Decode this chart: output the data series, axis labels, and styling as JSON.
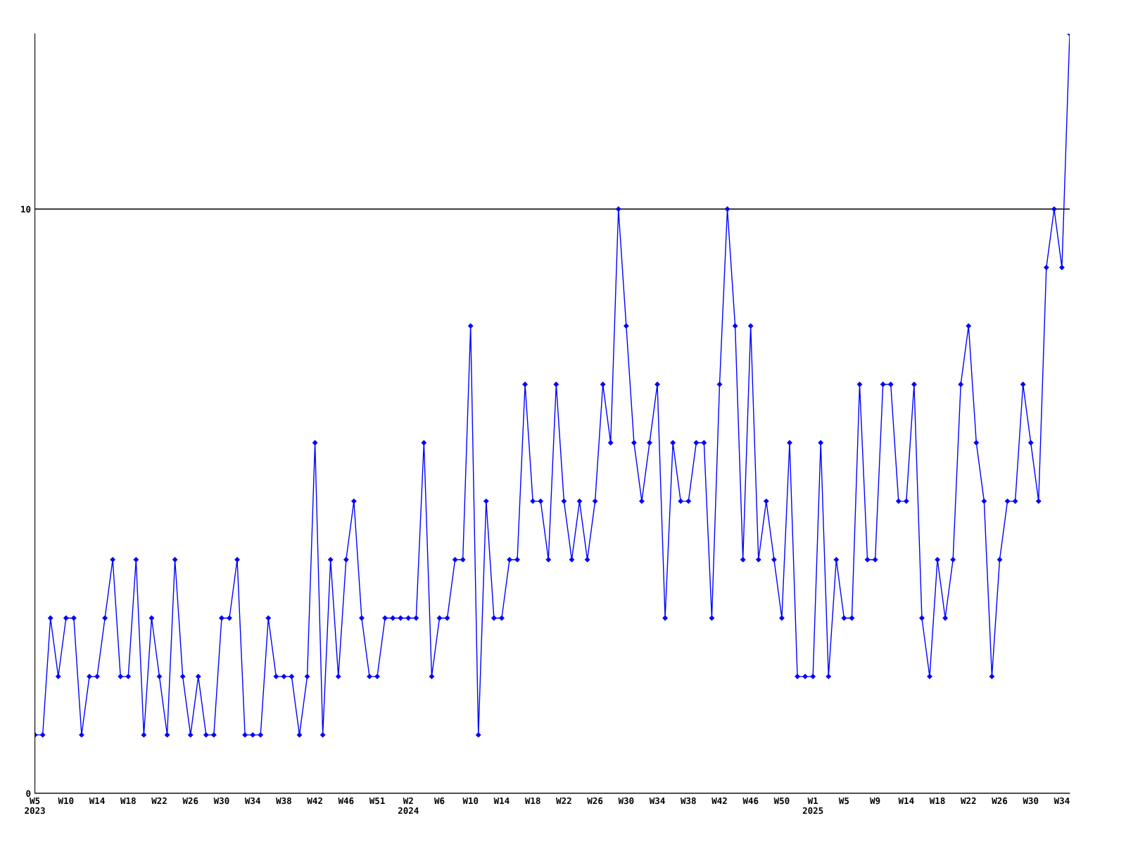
{
  "chart_data": {
    "type": "line",
    "categories": [
      "W5\n2023",
      null,
      null,
      null,
      "W10",
      null,
      null,
      null,
      "W14",
      null,
      null,
      null,
      "W18",
      null,
      null,
      null,
      "W22",
      null,
      null,
      null,
      "W26",
      null,
      null,
      null,
      "W30",
      null,
      null,
      null,
      "W34",
      null,
      null,
      null,
      "W38",
      null,
      null,
      null,
      "W42",
      null,
      null,
      null,
      "W46",
      null,
      null,
      null,
      "W51",
      null,
      null,
      null,
      "W2\n2024",
      null,
      null,
      null,
      "W6",
      null,
      null,
      null,
      "W10",
      null,
      null,
      null,
      "W14",
      null,
      null,
      null,
      "W18",
      null,
      null,
      null,
      "W22",
      null,
      null,
      null,
      "W26",
      null,
      null,
      null,
      "W30",
      null,
      null,
      null,
      "W34",
      null,
      null,
      null,
      "W38",
      null,
      null,
      null,
      "W42",
      null,
      null,
      null,
      "W46",
      null,
      null,
      null,
      "W50",
      null,
      null,
      null,
      "W1\n2025",
      null,
      null,
      null,
      "W5",
      null,
      null,
      null,
      "W9",
      null,
      null,
      null,
      "W14",
      null,
      null,
      null,
      "W18",
      null,
      null,
      null,
      "W22",
      null,
      null,
      null,
      "W26",
      null,
      null,
      null,
      "W30",
      null,
      null,
      null,
      "W34",
      null
    ],
    "series": [
      {
        "color": "#0000ff",
        "values": [
          1,
          1,
          3,
          2,
          3,
          3,
          1,
          2,
          2,
          3,
          4,
          2,
          2,
          4,
          1,
          3,
          2,
          1,
          4,
          2,
          1,
          2,
          1,
          1,
          3,
          3,
          4,
          1,
          1,
          1,
          3,
          2,
          2,
          2,
          1,
          2,
          6,
          1,
          4,
          2,
          4,
          5,
          3,
          2,
          2,
          3,
          3,
          3,
          3,
          3,
          6,
          2,
          3,
          3,
          4,
          4,
          8,
          1,
          5,
          3,
          3,
          4,
          4,
          7,
          5,
          5,
          4,
          7,
          5,
          4,
          5,
          4,
          5,
          7,
          6,
          10,
          8,
          6,
          5,
          6,
          7,
          3,
          6,
          5,
          5,
          6,
          6,
          3,
          7,
          10,
          8,
          4,
          8,
          4,
          5,
          4,
          3,
          6,
          2,
          2,
          2,
          6,
          2,
          4,
          3,
          3,
          7,
          4,
          4,
          7,
          7,
          5,
          5,
          7,
          3,
          2,
          4,
          3,
          4,
          7,
          8,
          6,
          5,
          2,
          4,
          5,
          5,
          7,
          6,
          5,
          9,
          10,
          9,
          13
        ]
      }
    ],
    "ylim": [
      0,
      13
    ],
    "yticks": [
      0,
      10
    ],
    "grid": "y",
    "marker": "diamond",
    "line_style": "solid"
  }
}
